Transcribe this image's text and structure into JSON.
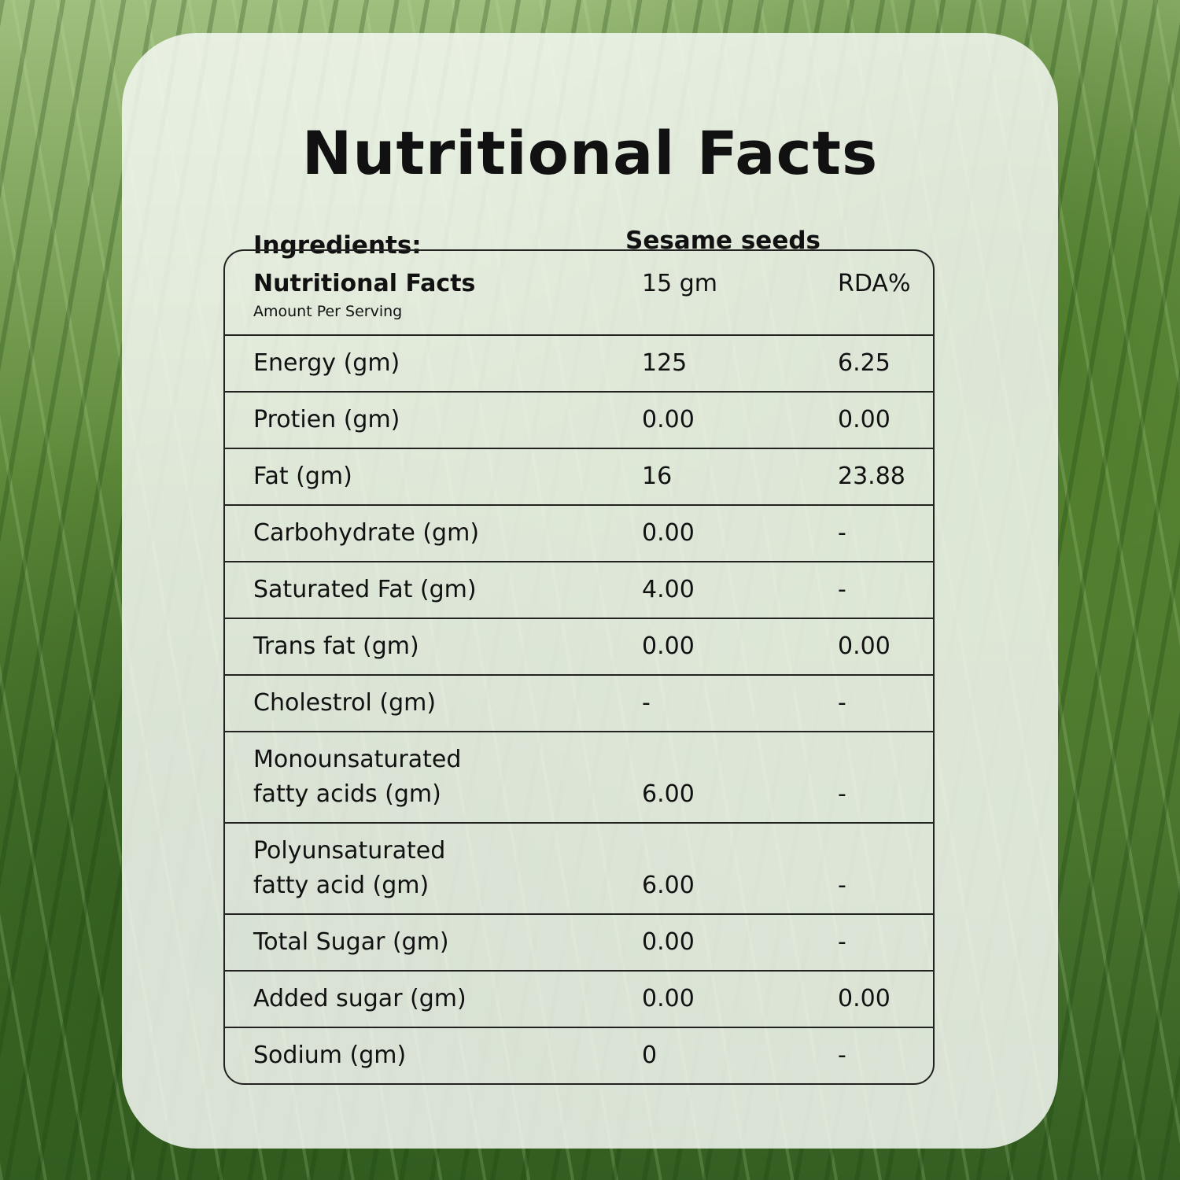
{
  "title": "Nutritional Facts",
  "ingredients": {
    "label": "Ingredients:",
    "value": "Sesame seeds"
  },
  "table": {
    "header": {
      "title": "Nutritional Facts",
      "subtitle": "Amount Per Serving",
      "columns": [
        "15 gm",
        "RDA%"
      ]
    },
    "rows": [
      [
        "Energy (gm)",
        "125",
        "6.25"
      ],
      [
        "Protien (gm)",
        "0.00",
        "0.00"
      ],
      [
        "Fat (gm)",
        "16",
        "23.88"
      ],
      [
        "Carbohydrate (gm)",
        "0.00",
        "-"
      ],
      [
        "Saturated Fat (gm)",
        "4.00",
        "-"
      ],
      [
        "Trans fat (gm)",
        "0.00",
        "0.00"
      ],
      [
        "Cholestrol (gm)",
        "-",
        "-"
      ],
      [
        "Monounsaturated\nfatty acids (gm)",
        "6.00",
        "-"
      ],
      [
        "Polyunsaturated\nfatty acid (gm)",
        "6.00",
        "-"
      ],
      [
        "Total Sugar (gm)",
        "0.00",
        "-"
      ],
      [
        "Added sugar (gm)",
        "0.00",
        "0.00"
      ],
      [
        "Sodium (gm)",
        "0",
        "-"
      ]
    ]
  }
}
